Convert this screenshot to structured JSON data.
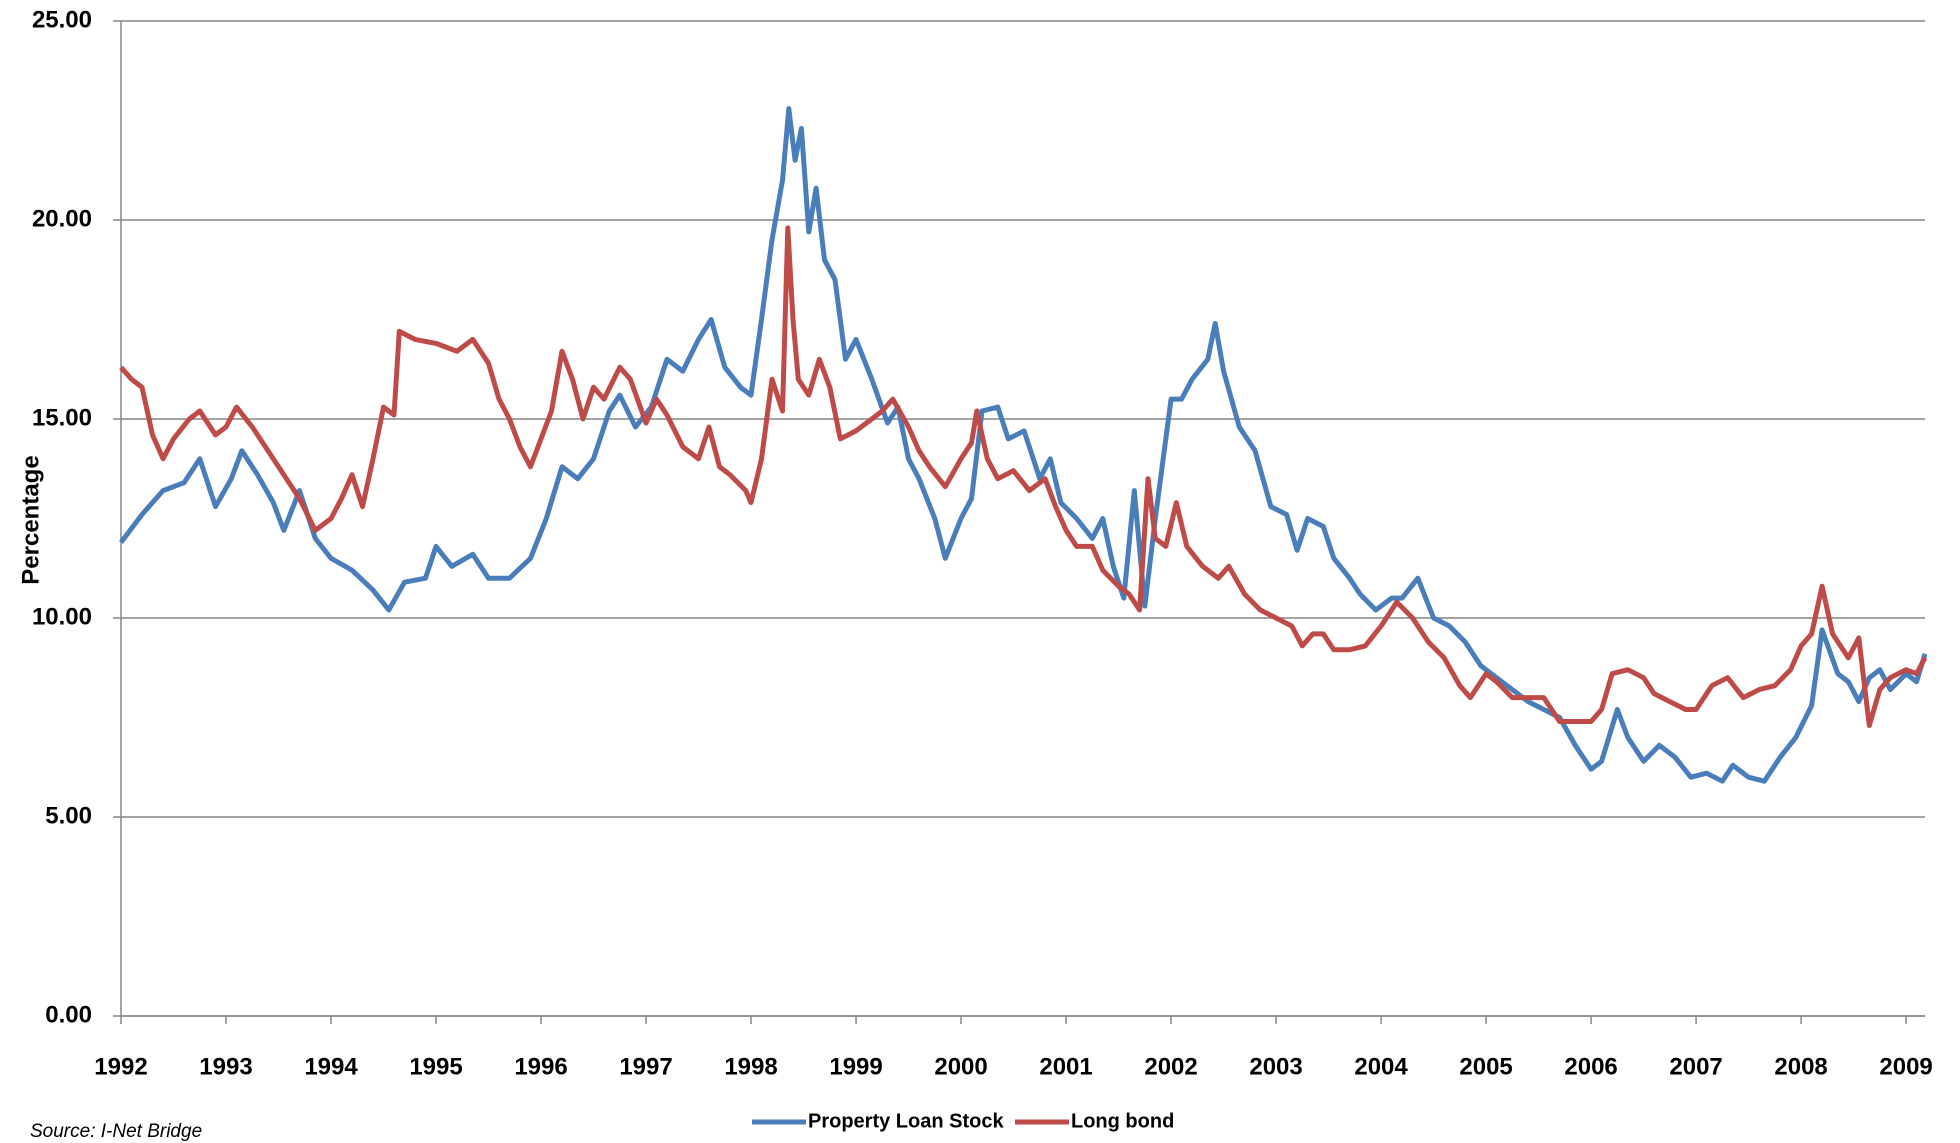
{
  "chart_data": {
    "type": "line",
    "y_label": "Percentage",
    "source": "Source: I-Net Bridge",
    "xlim": [
      1992,
      2009.18
    ],
    "xticks": [
      1992,
      1993,
      1994,
      1995,
      1996,
      1997,
      1998,
      1999,
      2000,
      2001,
      2002,
      2003,
      2004,
      2005,
      2006,
      2007,
      2008,
      2009
    ],
    "ylim": [
      0,
      25
    ],
    "yticks": [
      {
        "value": 0,
        "label": "0.00"
      },
      {
        "value": 5,
        "label": "5.00"
      },
      {
        "value": 10,
        "label": "10.00"
      },
      {
        "value": 15,
        "label": "15.00"
      },
      {
        "value": 20,
        "label": "20.00"
      },
      {
        "value": 25,
        "label": "25.00"
      }
    ],
    "grid": true,
    "legend": "bottom",
    "series": [
      {
        "name": "Property Loan Stock",
        "color": "#4a7ebb",
        "x": [
          1992.0,
          1992.2,
          1992.4,
          1992.6,
          1992.75,
          1992.9,
          1993.05,
          1993.15,
          1993.3,
          1993.45,
          1993.55,
          1993.7,
          1993.85,
          1994.0,
          1994.2,
          1994.4,
          1994.55,
          1994.7,
          1994.9,
          1995.0,
          1995.15,
          1995.35,
          1995.5,
          1995.7,
          1995.9,
          1996.05,
          1996.2,
          1996.35,
          1996.5,
          1996.65,
          1996.75,
          1996.9,
          1997.05,
          1997.2,
          1997.35,
          1997.5,
          1997.62,
          1997.75,
          1997.9,
          1998.0,
          1998.1,
          1998.2,
          1998.3,
          1998.36,
          1998.42,
          1998.48,
          1998.55,
          1998.62,
          1998.7,
          1998.8,
          1998.9,
          1999.0,
          1999.15,
          1999.3,
          1999.4,
          1999.5,
          1999.6,
          1999.75,
          1999.85,
          2000.0,
          2000.1,
          2000.2,
          2000.35,
          2000.45,
          2000.6,
          2000.75,
          2000.85,
          2000.95,
          2001.1,
          2001.25,
          2001.35,
          2001.45,
          2001.55,
          2001.65,
          2001.75,
          2001.85,
          2001.95,
          2002.0,
          2002.1,
          2002.2,
          2002.35,
          2002.42,
          2002.5,
          2002.65,
          2002.8,
          2002.95,
          2003.1,
          2003.2,
          2003.3,
          2003.45,
          2003.55,
          2003.7,
          2003.8,
          2003.95,
          2004.1,
          2004.2,
          2004.35,
          2004.5,
          2004.65,
          2004.8,
          2004.95,
          2005.1,
          2005.25,
          2005.4,
          2005.55,
          2005.7,
          2005.85,
          2006.0,
          2006.1,
          2006.25,
          2006.35,
          2006.5,
          2006.65,
          2006.8,
          2006.95,
          2007.1,
          2007.25,
          2007.35,
          2007.5,
          2007.65,
          2007.8,
          2007.95,
          2008.1,
          2008.2,
          2008.35,
          2008.45,
          2008.55,
          2008.65,
          2008.75,
          2008.85,
          2009.0,
          2009.1,
          2009.18
        ],
        "values": [
          11.9,
          12.6,
          13.2,
          13.4,
          14.0,
          12.8,
          13.5,
          14.2,
          13.6,
          12.9,
          12.2,
          13.2,
          12.0,
          11.5,
          11.2,
          10.7,
          10.2,
          10.9,
          11.0,
          11.8,
          11.3,
          11.6,
          11.0,
          11.0,
          11.5,
          12.5,
          13.8,
          13.5,
          14.0,
          15.2,
          15.6,
          14.8,
          15.3,
          16.5,
          16.2,
          17.0,
          17.5,
          16.3,
          15.8,
          15.6,
          17.5,
          19.5,
          21.0,
          22.8,
          21.5,
          22.3,
          19.7,
          20.8,
          19.0,
          18.5,
          16.5,
          17.0,
          16.0,
          14.9,
          15.3,
          14.0,
          13.5,
          12.5,
          11.5,
          12.5,
          13.0,
          15.2,
          15.3,
          14.5,
          14.7,
          13.5,
          14.0,
          12.9,
          12.5,
          12.0,
          12.5,
          11.3,
          10.5,
          13.2,
          10.3,
          12.5,
          14.5,
          15.5,
          15.5,
          16.0,
          16.5,
          17.4,
          16.2,
          14.8,
          14.2,
          12.8,
          12.6,
          11.7,
          12.5,
          12.3,
          11.5,
          11.0,
          10.6,
          10.2,
          10.5,
          10.5,
          11.0,
          10.0,
          9.8,
          9.4,
          8.8,
          8.5,
          8.2,
          7.9,
          7.7,
          7.5,
          6.8,
          6.2,
          6.4,
          7.7,
          7.0,
          6.4,
          6.8,
          6.5,
          6.0,
          6.1,
          5.9,
          6.3,
          6.0,
          5.9,
          6.5,
          7.0,
          7.8,
          9.7,
          8.6,
          8.4,
          7.9,
          8.5,
          8.7,
          8.2,
          8.6,
          8.4,
          9.1
        ]
      },
      {
        "name": "Long bond",
        "color": "#be4b48",
        "x": [
          1992.0,
          1992.1,
          1992.2,
          1992.3,
          1992.4,
          1992.5,
          1992.65,
          1992.75,
          1992.9,
          1993.0,
          1993.1,
          1993.25,
          1993.4,
          1993.55,
          1993.7,
          1993.85,
          1994.0,
          1994.1,
          1994.2,
          1994.3,
          1994.4,
          1994.5,
          1994.6,
          1994.65,
          1994.8,
          1995.0,
          1995.2,
          1995.35,
          1995.5,
          1995.6,
          1995.7,
          1995.8,
          1995.9,
          1996.0,
          1996.1,
          1996.2,
          1996.3,
          1996.4,
          1996.5,
          1996.6,
          1996.75,
          1996.85,
          1997.0,
          1997.1,
          1997.2,
          1997.35,
          1997.5,
          1997.6,
          1997.7,
          1997.8,
          1997.95,
          1998.0,
          1998.1,
          1998.2,
          1998.3,
          1998.35,
          1998.4,
          1998.45,
          1998.55,
          1998.65,
          1998.75,
          1998.85,
          1999.0,
          1999.15,
          1999.25,
          1999.35,
          1999.5,
          1999.6,
          1999.7,
          1999.85,
          2000.0,
          2000.1,
          2000.15,
          2000.25,
          2000.35,
          2000.5,
          2000.65,
          2000.8,
          2000.9,
          2001.0,
          2001.1,
          2001.25,
          2001.35,
          2001.5,
          2001.6,
          2001.7,
          2001.78,
          2001.85,
          2001.95,
          2002.05,
          2002.15,
          2002.3,
          2002.45,
          2002.55,
          2002.7,
          2002.85,
          2003.0,
          2003.15,
          2003.25,
          2003.35,
          2003.45,
          2003.55,
          2003.7,
          2003.85,
          2004.0,
          2004.15,
          2004.3,
          2004.45,
          2004.6,
          2004.75,
          2004.85,
          2005.0,
          2005.1,
          2005.25,
          2005.4,
          2005.55,
          2005.7,
          2005.85,
          2006.0,
          2006.1,
          2006.2,
          2006.35,
          2006.5,
          2006.6,
          2006.75,
          2006.9,
          2007.0,
          2007.15,
          2007.3,
          2007.45,
          2007.6,
          2007.75,
          2007.9,
          2008.0,
          2008.1,
          2008.2,
          2008.3,
          2008.45,
          2008.55,
          2008.65,
          2008.75,
          2008.85,
          2009.0,
          2009.1,
          2009.18
        ],
        "values": [
          16.3,
          16.0,
          15.8,
          14.6,
          14.0,
          14.5,
          15.0,
          15.2,
          14.6,
          14.8,
          15.3,
          14.8,
          14.2,
          13.6,
          13.0,
          12.2,
          12.5,
          13.0,
          13.6,
          12.8,
          14.0,
          15.3,
          15.1,
          17.2,
          17.0,
          16.9,
          16.7,
          17.0,
          16.4,
          15.5,
          15.0,
          14.3,
          13.8,
          14.5,
          15.2,
          16.7,
          16.0,
          15.0,
          15.8,
          15.5,
          16.3,
          16.0,
          14.9,
          15.5,
          15.1,
          14.3,
          14.0,
          14.8,
          13.8,
          13.6,
          13.2,
          12.9,
          14.0,
          16.0,
          15.2,
          19.8,
          17.5,
          16.0,
          15.6,
          16.5,
          15.8,
          14.5,
          14.7,
          15.0,
          15.2,
          15.5,
          14.8,
          14.2,
          13.8,
          13.3,
          14.0,
          14.4,
          15.2,
          14.0,
          13.5,
          13.7,
          13.2,
          13.5,
          12.8,
          12.2,
          11.8,
          11.8,
          11.2,
          10.8,
          10.6,
          10.2,
          13.5,
          12.0,
          11.8,
          12.9,
          11.8,
          11.3,
          11.0,
          11.3,
          10.6,
          10.2,
          10.0,
          9.8,
          9.3,
          9.6,
          9.6,
          9.2,
          9.2,
          9.3,
          9.8,
          10.4,
          10.0,
          9.4,
          9.0,
          8.3,
          8.0,
          8.6,
          8.4,
          8.0,
          8.0,
          8.0,
          7.4,
          7.4,
          7.4,
          7.7,
          8.6,
          8.7,
          8.5,
          8.1,
          7.9,
          7.7,
          7.7,
          8.3,
          8.5,
          8.0,
          8.2,
          8.3,
          8.7,
          9.3,
          9.6,
          10.8,
          9.6,
          9.0,
          9.5,
          7.3,
          8.2,
          8.5,
          8.7,
          8.6,
          9.0
        ]
      }
    ]
  }
}
